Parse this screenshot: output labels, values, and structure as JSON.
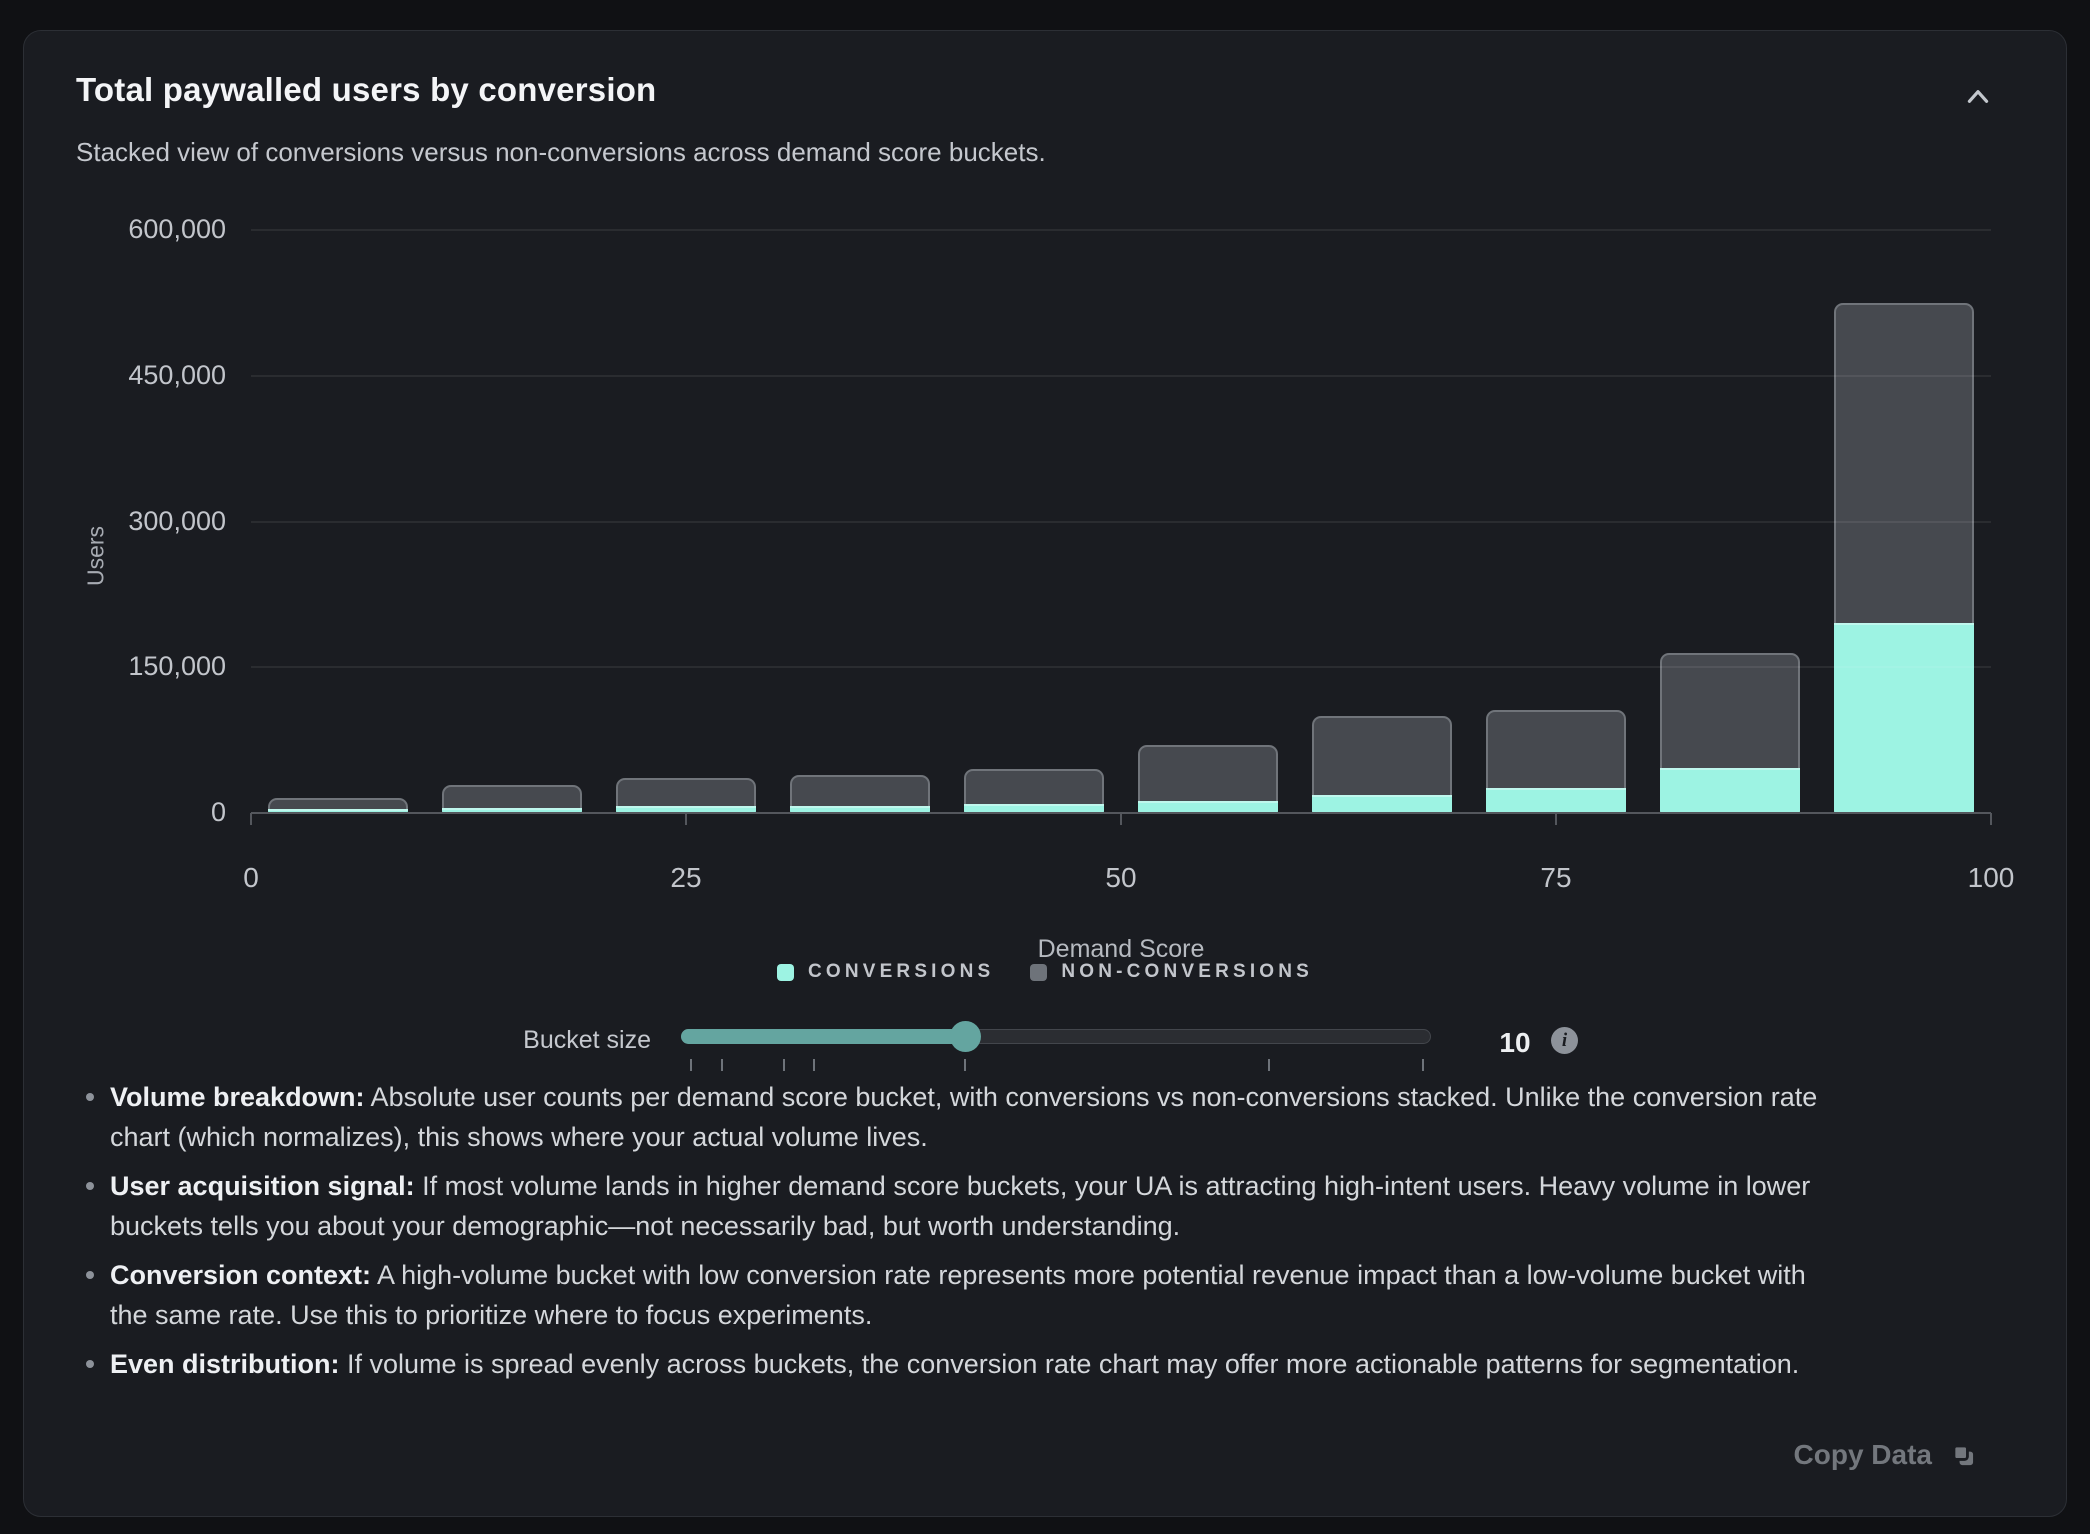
{
  "header": {
    "title": "Total paywalled users by conversion",
    "subtitle": "Stacked view of conversions versus non-conversions across demand score buckets."
  },
  "chart_data": {
    "type": "bar",
    "stacked": true,
    "title": "Total paywalled users by conversion",
    "xlabel": "Demand Score",
    "ylabel": "Users",
    "xlim": [
      0,
      100
    ],
    "ylim": [
      0,
      600000
    ],
    "x_ticks": [
      0,
      25,
      50,
      75,
      100
    ],
    "y_tick_labels": [
      "0",
      "150,000",
      "300,000",
      "450,000",
      "600,000"
    ],
    "grid": true,
    "legend_position": "bottom",
    "bucket_size": 10,
    "bucket_centers": [
      5,
      15,
      25,
      35,
      45,
      55,
      65,
      75,
      85,
      95
    ],
    "categories": [
      "0-10",
      "10-20",
      "20-30",
      "30-40",
      "40-50",
      "50-60",
      "60-70",
      "70-80",
      "80-90",
      "90-100"
    ],
    "series": [
      {
        "name": "CONVERSIONS",
        "color": "#9df3e3",
        "values": [
          4000,
          5000,
          7000,
          7000,
          9000,
          12000,
          19000,
          26000,
          46000,
          196000
        ]
      },
      {
        "name": "NON-CONVERSIONS",
        "color": "#46494f",
        "values": [
          11000,
          24000,
          29000,
          32000,
          36000,
          58000,
          81000,
          80000,
          119000,
          329000
        ]
      }
    ]
  },
  "legend": {
    "items": [
      {
        "label": "CONVERSIONS",
        "color": "#9df3e3"
      },
      {
        "label": "NON-CONVERSIONS",
        "color": "#6e737a"
      }
    ]
  },
  "slider": {
    "label": "Bucket size",
    "value": "10",
    "fill_percent": 37.9,
    "tick_percents": [
      1.3,
      5.5,
      13.7,
      17.7,
      37.9,
      78.4,
      98.9
    ],
    "accent_color": "#64a5a0"
  },
  "insights": [
    {
      "lead": "Volume breakdown:",
      "line1": "Absolute user counts per demand score bucket, with conversions vs non-conversions stacked. Unlike the conversion rate",
      "line2": "chart (which normalizes), this shows where your actual volume lives."
    },
    {
      "lead": "User acquisition signal:",
      "line1": "If most volume lands in higher demand score buckets, your UA is attracting high-intent users. Heavy volume in lower",
      "line2": "buckets tells you about your demographic—not necessarily bad, but worth understanding."
    },
    {
      "lead": "Conversion context:",
      "line1": "A high-volume bucket with low conversion rate represents more potential revenue impact than a low-volume bucket with",
      "line2": "the same rate. Use this to prioritize where to focus experiments."
    },
    {
      "lead": "Even distribution:",
      "line1": "If volume is spread evenly across buckets, the conversion rate chart may offer more actionable patterns for segmentation.",
      "line2": ""
    }
  ],
  "footer": {
    "copy_label": "Copy Data"
  }
}
